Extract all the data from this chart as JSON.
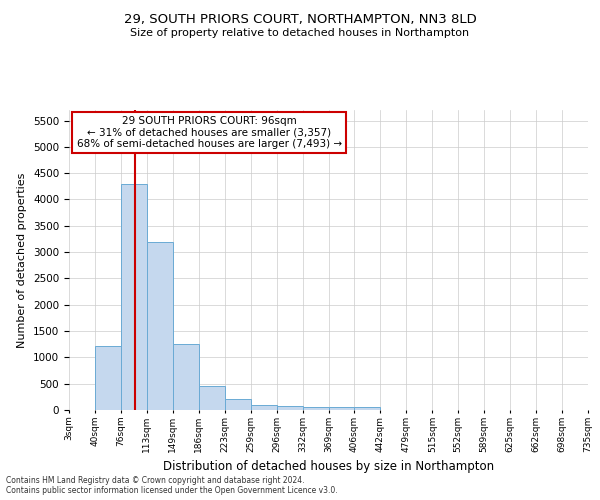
{
  "title1": "29, SOUTH PRIORS COURT, NORTHAMPTON, NN3 8LD",
  "title2": "Size of property relative to detached houses in Northampton",
  "xlabel": "Distribution of detached houses by size in Northampton",
  "ylabel": "Number of detached properties",
  "footnote": "Contains HM Land Registry data © Crown copyright and database right 2024.\nContains public sector information licensed under the Open Government Licence v3.0.",
  "bin_labels": [
    "3sqm",
    "40sqm",
    "76sqm",
    "113sqm",
    "149sqm",
    "186sqm",
    "223sqm",
    "259sqm",
    "296sqm",
    "332sqm",
    "369sqm",
    "406sqm",
    "442sqm",
    "479sqm",
    "515sqm",
    "552sqm",
    "589sqm",
    "625sqm",
    "662sqm",
    "698sqm",
    "735sqm"
  ],
  "bar_values": [
    0,
    1220,
    4300,
    3200,
    1250,
    450,
    200,
    100,
    75,
    50,
    50,
    50,
    0,
    0,
    0,
    0,
    0,
    0,
    0,
    0
  ],
  "bar_color": "#c5d8ee",
  "bar_edge_color": "#6aaad4",
  "vline_color": "#cc0000",
  "annotation_text": "29 SOUTH PRIORS COURT: 96sqm\n← 31% of detached houses are smaller (3,357)\n68% of semi-detached houses are larger (7,493) →",
  "annotation_box_color": "#ffffff",
  "annotation_box_edge": "#cc0000",
  "ylim": [
    0,
    5700
  ],
  "yticks": [
    0,
    500,
    1000,
    1500,
    2000,
    2500,
    3000,
    3500,
    4000,
    4500,
    5000,
    5500
  ],
  "background_color": "#ffffff",
  "grid_color": "#cccccc",
  "prop_sqm": 96,
  "bin_edges": [
    3,
    40,
    76,
    113,
    149,
    186,
    223,
    259,
    296,
    332,
    369,
    406,
    442,
    479,
    515,
    552,
    589,
    625,
    662,
    698,
    735
  ]
}
